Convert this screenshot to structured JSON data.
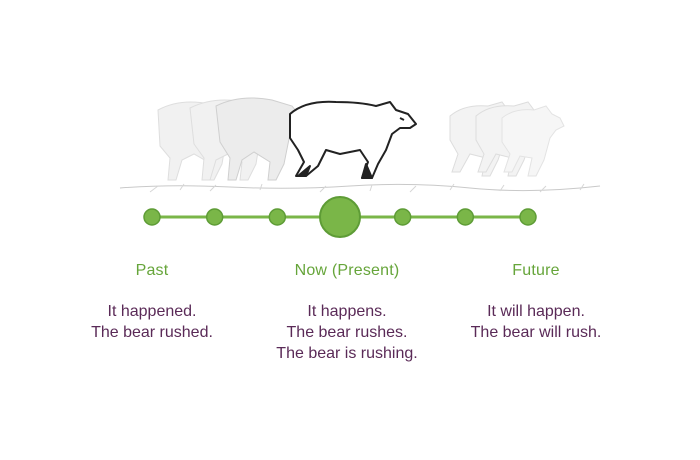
{
  "colors": {
    "accent": "#7ab648",
    "accent_dark": "#5e9c36",
    "heading": "#66a53a",
    "text": "#5a2a57"
  },
  "illustration": {
    "icon": "running-bear-motion-sequence-icon"
  },
  "timeline": {
    "dots": 7,
    "current_index": 3
  },
  "columns": {
    "past": {
      "heading": "Past",
      "lines": [
        "It happened.",
        "The bear rushed."
      ]
    },
    "now": {
      "heading": "Now (Present)",
      "lines": [
        "It happens.",
        "The bear rushes.",
        "The bear is rushing."
      ]
    },
    "future": {
      "heading": "Future",
      "lines": [
        "It will happen.",
        "The bear will rush."
      ]
    }
  }
}
